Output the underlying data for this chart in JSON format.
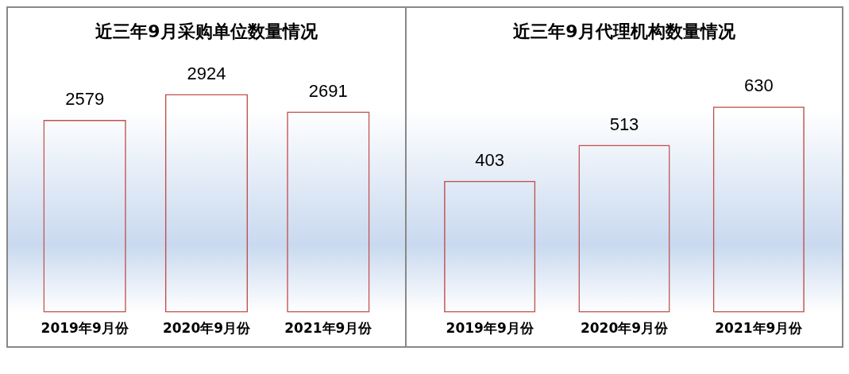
{
  "chart_data": [
    {
      "type": "bar",
      "title": "近三年9月采购单位数量情况",
      "categories": [
        "2019年9月份",
        "2020年9月份",
        "2021年9月份"
      ],
      "values": [
        2579,
        2924,
        2691
      ],
      "color": "#c0504d",
      "data_labels": true
    },
    {
      "type": "bar",
      "title": "近三年9月代理机构数量情况",
      "categories": [
        "2019年9月份",
        "2020年9月份",
        "2021年9月份"
      ],
      "values": [
        403,
        513,
        630
      ],
      "color": "#c0504d",
      "data_labels": true
    }
  ]
}
